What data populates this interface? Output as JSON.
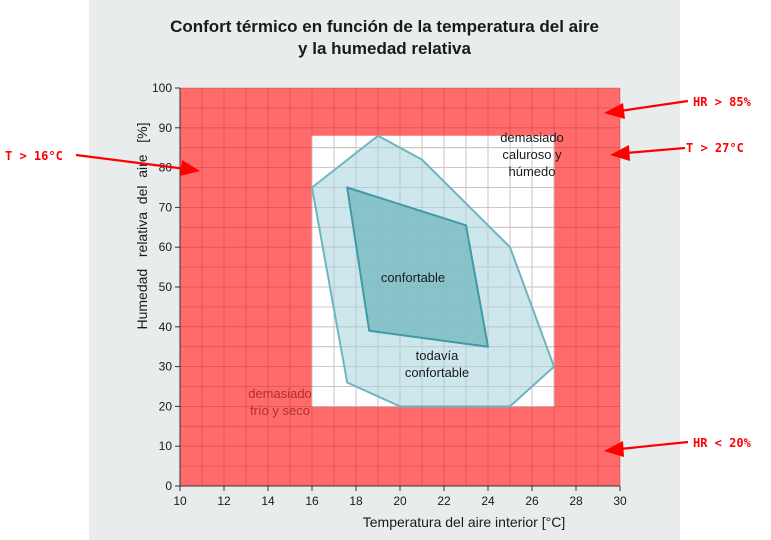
{
  "chart_data": {
    "type": "area",
    "title_lines": [
      "Confort térmico en función de la temperatura del aire",
      "y la humedad relativa"
    ],
    "xlabel": "Temperatura del aire interior [°C]",
    "ylabel": "Humedad   relativa  del  aire   [%]",
    "xlim": [
      10,
      30
    ],
    "ylim": [
      0,
      100
    ],
    "xticks": [
      10,
      12,
      14,
      16,
      18,
      20,
      22,
      24,
      26,
      28,
      30
    ],
    "yticks": [
      0,
      10,
      20,
      30,
      40,
      50,
      60,
      70,
      80,
      90,
      100
    ],
    "grid": true,
    "acceptable_zone": {
      "x": [
        16,
        27
      ],
      "y": [
        20,
        88
      ]
    },
    "series": [
      {
        "name": "todavía confortable",
        "points": [
          [
            16,
            75
          ],
          [
            19,
            88
          ],
          [
            21,
            82
          ],
          [
            23,
            71
          ],
          [
            25,
            60
          ],
          [
            27,
            30
          ],
          [
            25,
            20
          ],
          [
            20,
            20
          ],
          [
            17.6,
            26
          ]
        ]
      },
      {
        "name": "confortable",
        "points": [
          [
            17.6,
            75
          ],
          [
            23,
            65.5
          ],
          [
            24,
            35
          ],
          [
            18.6,
            39
          ]
        ]
      }
    ],
    "region_labels": [
      {
        "id": "label-hot-humid",
        "lines": [
          "demasiado",
          "caluroso y",
          "húmedo"
        ]
      },
      {
        "id": "label-comfortable",
        "lines": [
          "confortable"
        ]
      },
      {
        "id": "label-still-comfortable",
        "lines": [
          "todavía",
          "confortable"
        ]
      },
      {
        "id": "label-cold-dry",
        "lines": [
          "demasiado",
          "frío y seco"
        ]
      }
    ],
    "annotations": [
      "T > 16°C",
      "HR > 85%",
      "T > 27°C",
      "HR < 20%"
    ]
  },
  "colors": {
    "zone_red": "#ff6b6b",
    "grid_line": "#cc3a3a",
    "grid_light": "#c8c8c8",
    "still_comfortable_fill": "#a6d4dc",
    "still_comfortable_stroke": "#6cb6c0",
    "comfortable_fill": "#7cbcc4",
    "comfortable_stroke": "#3f9aa6",
    "cold_dry_text": "#b03030",
    "arrow_red": "#ff0000"
  }
}
